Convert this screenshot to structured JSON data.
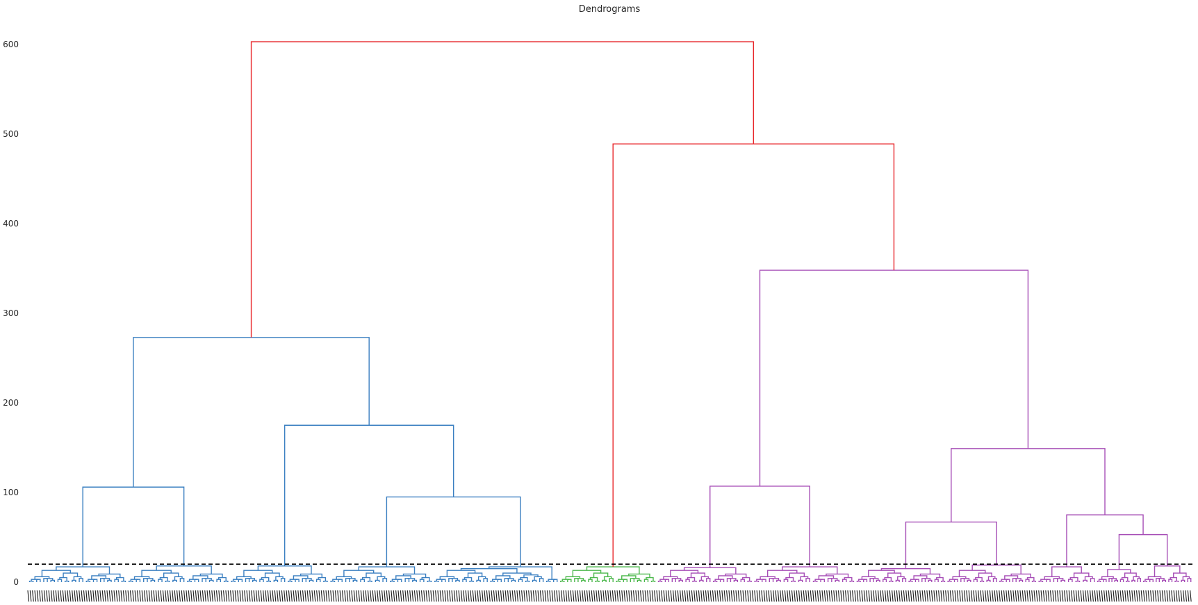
{
  "chart_data": {
    "type": "dendrogram",
    "title": "Dendrograms",
    "xlabel": "",
    "ylabel": "",
    "ylim": [
      0,
      630
    ],
    "yticks": [
      0,
      100,
      200,
      300,
      400,
      500,
      600
    ],
    "grid": false,
    "legend": "none",
    "threshold": 20,
    "leaf_count": 1500,
    "colors": {
      "root": "#e8262a",
      "cluster_blue": "#3a7fc1",
      "cluster_green": "#4cb84c",
      "cluster_purple": "#a64db6",
      "threshold_line": "#000000",
      "tick_text": "#262626"
    },
    "clusters": [
      {
        "color": "cluster_blue",
        "leaf_range": [
          0,
          684
        ]
      },
      {
        "color": "cluster_green",
        "leaf_range": [
          684,
          810
        ]
      },
      {
        "color": "cluster_purple",
        "leaf_range": [
          810,
          1500
        ]
      }
    ],
    "merges": [
      {
        "left_height": 8,
        "right_height": 9,
        "height": 17,
        "color": "cluster_blue"
      },
      {
        "left_height": 6,
        "right_height": 10,
        "height": 18,
        "color": "cluster_blue"
      },
      {
        "left_height": 12,
        "right_height": 8,
        "height": 18,
        "color": "cluster_blue"
      },
      {
        "left_height": 9,
        "right_height": 13,
        "height": 17,
        "color": "cluster_blue"
      },
      {
        "left_height": 8,
        "right_height": 9,
        "height": 17,
        "color": "cluster_blue"
      },
      {
        "left_height": 17,
        "right_height": 18,
        "height": 106,
        "color": "cluster_blue"
      },
      {
        "left_height": 18,
        "right_height": 17,
        "height": 95,
        "color": "cluster_blue"
      },
      {
        "left_height": 18,
        "right_height": 95,
        "height": 175,
        "color": "cluster_blue"
      },
      {
        "left_height": 106,
        "right_height": 175,
        "height": 273,
        "color": "cluster_blue"
      },
      {
        "left_height": 9,
        "right_height": 10,
        "height": 17,
        "color": "cluster_green"
      },
      {
        "left_height": 9,
        "right_height": 13,
        "height": 16,
        "color": "cluster_purple"
      },
      {
        "left_height": 10,
        "right_height": 12,
        "height": 17,
        "color": "cluster_purple"
      },
      {
        "left_height": 16,
        "right_height": 17,
        "height": 107,
        "color": "cluster_purple"
      },
      {
        "left_height": 9,
        "right_height": 12,
        "height": 15,
        "color": "cluster_purple"
      },
      {
        "left_height": 12,
        "right_height": 10,
        "height": 19,
        "color": "cluster_purple"
      },
      {
        "left_height": 15,
        "right_height": 19,
        "height": 67,
        "color": "cluster_purple"
      },
      {
        "left_height": 9,
        "right_height": 12,
        "height": 17,
        "color": "cluster_purple"
      },
      {
        "left_height": 10,
        "right_height": 9,
        "height": 14,
        "color": "cluster_purple"
      },
      {
        "left_height": 10,
        "right_height": 12,
        "height": 18,
        "color": "cluster_purple"
      },
      {
        "left_height": 14,
        "right_height": 18,
        "height": 53,
        "color": "cluster_purple"
      },
      {
        "left_height": 17,
        "right_height": 53,
        "height": 75,
        "color": "cluster_purple"
      },
      {
        "left_height": 67,
        "right_height": 75,
        "height": 149,
        "color": "cluster_purple"
      },
      {
        "left_height": 107,
        "right_height": 149,
        "height": 348,
        "color": "cluster_purple"
      },
      {
        "left_height": 17,
        "right_height": 348,
        "height": 489,
        "color": "root"
      },
      {
        "left_height": 273,
        "right_height": 489,
        "height": 603,
        "color": "root"
      }
    ]
  }
}
